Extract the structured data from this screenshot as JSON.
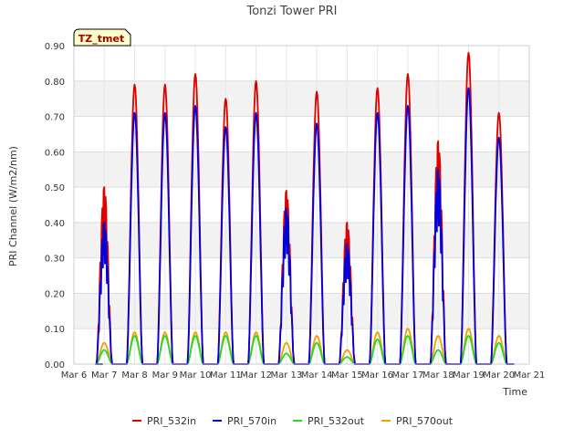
{
  "chart_data": {
    "type": "line",
    "title": "Tonzi Tower PRI",
    "site_label": "TZ_tmet",
    "xlabel": "Time",
    "ylabel": "PRI Channel (W/m2/nm)",
    "ylim": [
      0,
      0.9
    ],
    "yticks": [
      "0.00",
      "0.10",
      "0.20",
      "0.30",
      "0.40",
      "0.50",
      "0.60",
      "0.70",
      "0.80",
      "0.90"
    ],
    "xlim": [
      6,
      21
    ],
    "xticks": [
      "Mar 6",
      "Mar 7",
      "Mar 8",
      "Mar 9",
      "Mar 10",
      "Mar 11",
      "Mar 12",
      "Mar 13",
      "Mar 14",
      "Mar 15",
      "Mar 16",
      "Mar 17",
      "Mar 18",
      "Mar 19",
      "Mar 20",
      "Mar 21"
    ],
    "grid": true,
    "legend_position": "bottom",
    "daily_peaks": {
      "days": [
        6,
        7,
        8,
        9,
        10,
        11,
        12,
        13,
        14,
        15,
        16,
        17,
        18,
        19
      ],
      "PRI_532in": [
        0.5,
        0.79,
        0.79,
        0.82,
        0.75,
        0.8,
        0.49,
        0.77,
        0.4,
        0.78,
        0.82,
        0.63,
        0.88,
        0.71
      ],
      "PRI_570in": [
        0.4,
        0.71,
        0.71,
        0.73,
        0.67,
        0.71,
        0.44,
        0.68,
        0.34,
        0.71,
        0.73,
        0.55,
        0.78,
        0.64
      ],
      "PRI_532out": [
        0.04,
        0.08,
        0.08,
        0.08,
        0.08,
        0.08,
        0.03,
        0.06,
        0.02,
        0.07,
        0.08,
        0.04,
        0.08,
        0.06
      ],
      "PRI_570out": [
        0.06,
        0.09,
        0.09,
        0.09,
        0.09,
        0.09,
        0.06,
        0.08,
        0.04,
        0.09,
        0.1,
        0.08,
        0.1,
        0.08
      ]
    },
    "series": [
      {
        "name": "PRI_532in",
        "color": "#e00000"
      },
      {
        "name": "PRI_570in",
        "color": "#0000dd"
      },
      {
        "name": "PRI_532out",
        "color": "#22dd22"
      },
      {
        "name": "PRI_570out",
        "color": "#f0a000"
      }
    ]
  }
}
